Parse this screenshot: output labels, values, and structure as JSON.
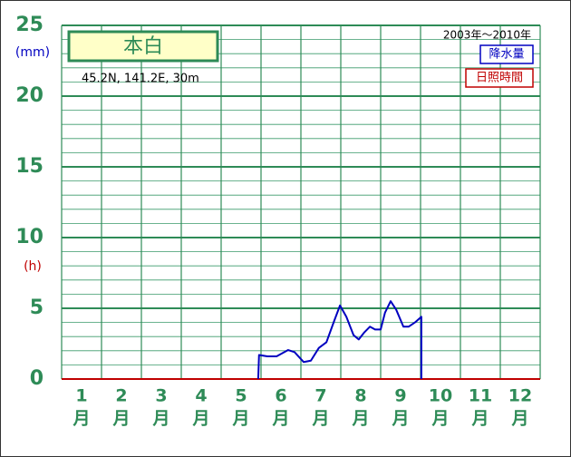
{
  "chart_data": {
    "type": "line",
    "title": "本白",
    "subtitle": "45.2N,  141.2E,  30m",
    "period": "2003年〜2010年",
    "y_unit": "(mm)",
    "y2_unit": "(h)",
    "categories": [
      "1",
      "2",
      "3",
      "4",
      "5",
      "6",
      "7",
      "8",
      "9",
      "10",
      "11",
      "12"
    ],
    "month_unit": "月",
    "xlim": [
      0,
      12
    ],
    "ylim": [
      0,
      25
    ],
    "yticks": [
      0,
      5,
      10,
      15,
      20,
      25
    ],
    "grid": true,
    "series": [
      {
        "name": "降水量",
        "color": "#0000c0",
        "x": [
          4.93,
          4.95,
          5.16,
          5.39,
          5.68,
          5.84,
          6.07,
          6.25,
          6.45,
          6.64,
          6.82,
          6.98,
          7.14,
          7.32,
          7.45,
          7.59,
          7.73,
          7.86,
          8.0,
          8.11,
          8.25,
          8.39,
          8.57,
          8.7,
          8.86,
          9.02,
          9.02
        ],
        "values": [
          0,
          1.7,
          1.6,
          1.6,
          2.05,
          1.9,
          1.2,
          1.3,
          2.2,
          2.6,
          4.0,
          5.2,
          4.4,
          3.1,
          2.8,
          3.3,
          3.7,
          3.5,
          3.5,
          4.7,
          5.5,
          4.9,
          3.7,
          3.7,
          4.0,
          4.4,
          0
        ]
      }
    ],
    "secondary_legend": {
      "name": "日照時間",
      "color": "#c00000"
    }
  }
}
